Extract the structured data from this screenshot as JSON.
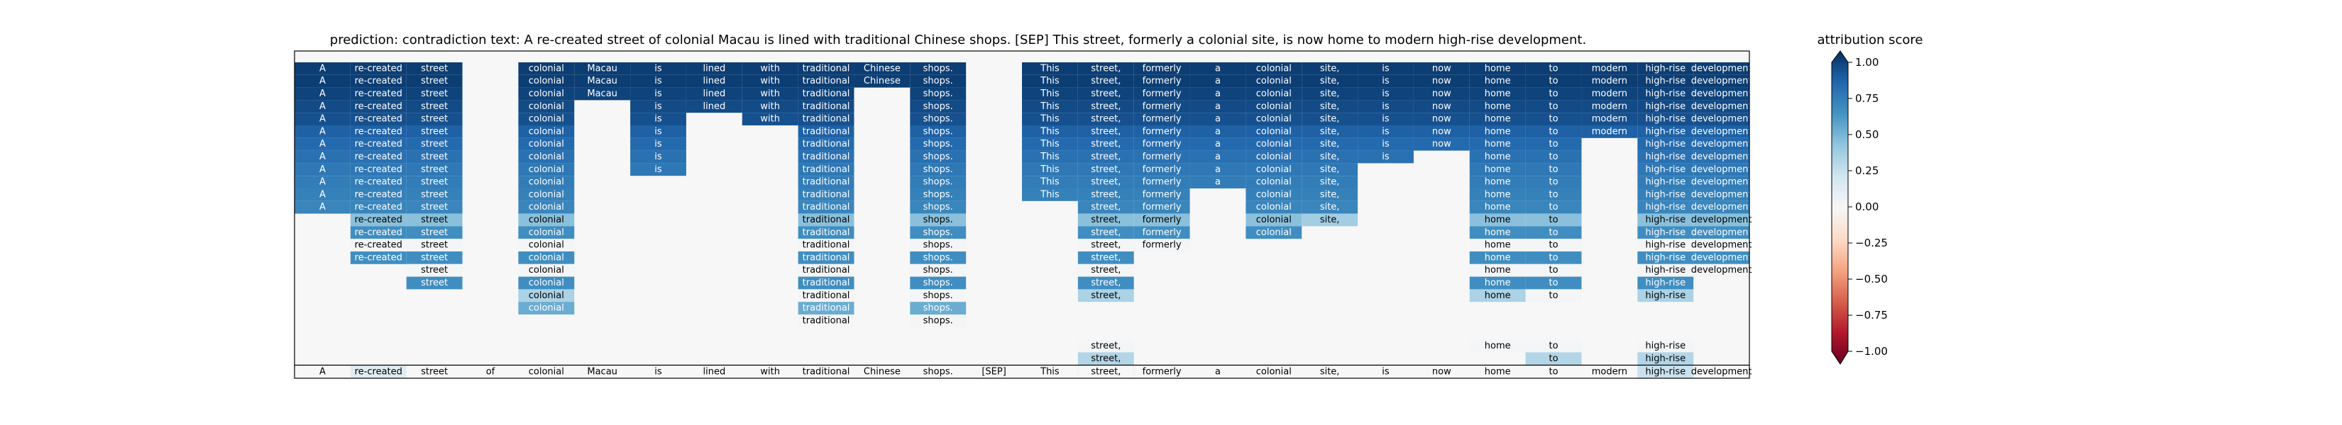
{
  "chart_data": {
    "type": "heatmap",
    "title": "prediction:  contradiction      text:  A re-created street of colonial Macau is lined with traditional Chinese shops. [SEP] This street, formerly a colonial site, is now home to modern high-rise development.",
    "colorbar": {
      "label": "attribution score",
      "ticks": [
        "1.00",
        "0.75",
        "0.50",
        "0.25",
        "0.00",
        "−0.25",
        "−0.50",
        "−0.75",
        "−1.00"
      ],
      "range": [
        -1.0,
        1.0
      ],
      "colormap": [
        "#67001f",
        "#b2182b",
        "#d6604d",
        "#f4a582",
        "#fddbc7",
        "#f7f7f7",
        "#d1e5f0",
        "#92c5de",
        "#4393c3",
        "#2166ac",
        "#053061"
      ]
    },
    "tokens": [
      "A",
      "re-created",
      "street",
      "of",
      "colonial",
      "Macau",
      "is",
      "lined",
      "with",
      "traditional",
      "Chinese",
      "shops.",
      "[SEP]",
      "This",
      "street,",
      "formerly",
      "a",
      "colonial",
      "site,",
      "is",
      "now",
      "home",
      "to",
      "modern",
      "high-rise",
      "development"
    ],
    "bottom_scores": [
      0,
      0.12,
      0,
      0,
      0,
      0,
      0,
      0,
      0,
      0,
      0,
      0,
      0,
      0,
      0,
      0,
      0,
      0,
      0,
      0,
      0,
      0,
      0,
      0,
      0.22,
      0
    ],
    "rows": [
      [
        0.95,
        0.95,
        0.95,
        null,
        0.95,
        0.95,
        0.95,
        0.95,
        0.95,
        0.95,
        0.95,
        0.95,
        null,
        0.95,
        0.95,
        0.95,
        0.95,
        0.95,
        0.95,
        0.95,
        0.95,
        0.95,
        0.95,
        0.95,
        0.95,
        0.95
      ],
      [
        0.95,
        0.95,
        0.95,
        null,
        0.95,
        0.95,
        0.95,
        0.95,
        0.95,
        0.95,
        0.95,
        0.95,
        null,
        0.95,
        0.95,
        0.95,
        0.95,
        0.95,
        0.95,
        0.95,
        0.95,
        0.95,
        0.95,
        0.95,
        0.95,
        0.95
      ],
      [
        0.93,
        0.93,
        0.93,
        null,
        0.93,
        0.93,
        0.93,
        0.93,
        0.93,
        0.93,
        null,
        0.93,
        null,
        0.93,
        0.93,
        0.93,
        0.93,
        0.93,
        0.93,
        0.93,
        0.93,
        0.93,
        0.93,
        0.93,
        0.93,
        0.93
      ],
      [
        0.9,
        0.9,
        0.9,
        null,
        0.9,
        null,
        0.9,
        0.9,
        0.9,
        0.9,
        null,
        0.9,
        null,
        0.9,
        0.9,
        0.9,
        0.9,
        0.9,
        0.9,
        0.9,
        0.9,
        0.9,
        0.9,
        0.9,
        0.9,
        0.9
      ],
      [
        0.88,
        0.88,
        0.88,
        null,
        0.88,
        null,
        0.88,
        null,
        0.88,
        0.88,
        null,
        0.88,
        null,
        0.88,
        0.88,
        0.88,
        0.88,
        0.88,
        0.88,
        0.88,
        0.88,
        0.88,
        0.88,
        0.88,
        0.88,
        0.88
      ],
      [
        0.82,
        0.82,
        0.82,
        null,
        0.82,
        null,
        0.82,
        null,
        null,
        0.82,
        null,
        0.82,
        null,
        0.82,
        0.82,
        0.82,
        0.82,
        0.82,
        0.82,
        0.82,
        0.82,
        0.82,
        0.82,
        0.82,
        0.82,
        0.82
      ],
      [
        0.78,
        0.78,
        0.78,
        null,
        0.78,
        null,
        0.78,
        null,
        null,
        0.78,
        null,
        0.78,
        null,
        0.78,
        0.78,
        0.78,
        0.78,
        0.78,
        0.78,
        0.78,
        0.78,
        0.78,
        0.78,
        null,
        0.78,
        0.78
      ],
      [
        0.75,
        0.75,
        0.75,
        null,
        0.75,
        null,
        0.75,
        null,
        null,
        0.75,
        null,
        0.75,
        null,
        0.75,
        0.75,
        0.75,
        0.75,
        0.75,
        0.75,
        0.75,
        null,
        0.75,
        0.75,
        null,
        0.75,
        0.75
      ],
      [
        0.72,
        0.72,
        0.72,
        null,
        0.72,
        null,
        0.72,
        null,
        null,
        0.72,
        null,
        0.72,
        null,
        0.72,
        0.72,
        0.72,
        0.72,
        0.72,
        0.72,
        null,
        null,
        0.72,
        0.72,
        null,
        0.72,
        0.72
      ],
      [
        0.7,
        0.7,
        0.7,
        null,
        0.7,
        null,
        null,
        null,
        null,
        0.7,
        null,
        0.7,
        null,
        0.7,
        0.7,
        0.7,
        0.7,
        0.7,
        0.7,
        null,
        null,
        0.7,
        0.7,
        null,
        0.7,
        0.7
      ],
      [
        0.68,
        0.68,
        0.68,
        null,
        0.68,
        null,
        null,
        null,
        null,
        0.68,
        null,
        0.68,
        null,
        0.68,
        0.68,
        0.68,
        null,
        0.68,
        0.68,
        null,
        null,
        0.68,
        0.68,
        null,
        0.68,
        0.68
      ],
      [
        0.66,
        0.66,
        0.66,
        null,
        0.66,
        null,
        null,
        null,
        null,
        0.66,
        null,
        0.66,
        null,
        null,
        0.66,
        0.66,
        null,
        0.66,
        0.66,
        null,
        null,
        0.66,
        0.66,
        null,
        0.66,
        0.66
      ],
      [
        null,
        0.42,
        0.42,
        null,
        0.42,
        null,
        null,
        null,
        null,
        0.42,
        null,
        0.42,
        null,
        null,
        0.42,
        0.42,
        null,
        0.42,
        0.35,
        null,
        null,
        0.42,
        0.42,
        null,
        0.42,
        0.42
      ],
      [
        null,
        0.62,
        0.62,
        null,
        0.62,
        null,
        null,
        null,
        null,
        0.62,
        null,
        0.62,
        null,
        null,
        0.62,
        0.62,
        null,
        0.62,
        null,
        null,
        null,
        0.62,
        0.62,
        null,
        0.62,
        0.62
      ],
      [
        null,
        0.02,
        0.02,
        null,
        0.02,
        null,
        null,
        null,
        null,
        0.02,
        null,
        0.02,
        null,
        null,
        0.02,
        0.02,
        null,
        null,
        null,
        null,
        null,
        0.02,
        0.02,
        null,
        0.02,
        0.02
      ],
      [
        null,
        0.62,
        0.62,
        null,
        0.62,
        null,
        null,
        null,
        null,
        0.62,
        null,
        0.62,
        null,
        null,
        0.62,
        null,
        null,
        null,
        null,
        null,
        null,
        0.62,
        0.62,
        null,
        0.62,
        0.62
      ],
      [
        null,
        null,
        0.02,
        null,
        0.02,
        null,
        null,
        null,
        null,
        0.02,
        null,
        0.02,
        null,
        null,
        0.02,
        null,
        null,
        null,
        null,
        null,
        null,
        0.02,
        0.02,
        null,
        0.02,
        0.02
      ],
      [
        null,
        null,
        0.62,
        null,
        0.62,
        null,
        null,
        null,
        null,
        0.62,
        null,
        0.62,
        null,
        null,
        0.62,
        null,
        null,
        null,
        null,
        null,
        null,
        0.62,
        0.62,
        null,
        0.62,
        null
      ],
      [
        null,
        null,
        null,
        null,
        0.32,
        null,
        null,
        null,
        null,
        0.02,
        null,
        0.02,
        null,
        null,
        0.32,
        null,
        null,
        null,
        null,
        null,
        null,
        0.32,
        0.02,
        null,
        0.32,
        null
      ],
      [
        null,
        null,
        null,
        null,
        0.5,
        null,
        null,
        null,
        null,
        0.5,
        null,
        0.5,
        null,
        null,
        null,
        null,
        null,
        null,
        null,
        null,
        null,
        null,
        null,
        null,
        null,
        null
      ],
      [
        null,
        null,
        null,
        null,
        null,
        null,
        null,
        null,
        null,
        0.02,
        null,
        0.02,
        null,
        null,
        null,
        null,
        null,
        null,
        null,
        null,
        null,
        null,
        null,
        null,
        null,
        null
      ],
      [
        null,
        null,
        null,
        null,
        null,
        null,
        null,
        null,
        null,
        null,
        null,
        null,
        null,
        null,
        null,
        null,
        null,
        null,
        null,
        null,
        null,
        null,
        null,
        null,
        null,
        null
      ],
      [
        null,
        null,
        null,
        null,
        null,
        null,
        null,
        null,
        null,
        null,
        null,
        null,
        null,
        null,
        0.02,
        null,
        null,
        null,
        null,
        null,
        null,
        0.02,
        0.02,
        null,
        0.02,
        null
      ],
      [
        null,
        null,
        null,
        null,
        null,
        null,
        null,
        null,
        null,
        null,
        null,
        null,
        null,
        null,
        0.3,
        null,
        null,
        null,
        null,
        null,
        null,
        null,
        0.3,
        null,
        0.3,
        null
      ],
      [
        null,
        null,
        null,
        null,
        null,
        null,
        null,
        null,
        null,
        null,
        null,
        null,
        null,
        null,
        0.8,
        null,
        null,
        null,
        null,
        null,
        null,
        null,
        null,
        null,
        0.8,
        null
      ]
    ]
  }
}
